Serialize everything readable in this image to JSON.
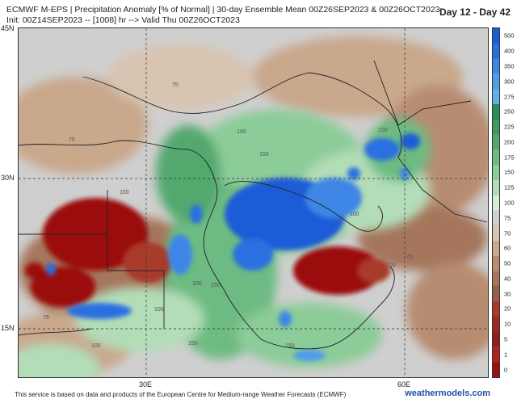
{
  "header": {
    "title_line1": "ECMWF M-EPS | Precipitation Anomaly [% of Normal] | 30-day Ensemble Mean 00Z26SEP2023 & 00Z26OCT2023",
    "title_line2": "Init: 00Z14SEP2023 -- [1008] hr --> Valid Thu 00Z26OCT2023",
    "day_range": "Day 12 - Day 42"
  },
  "map": {
    "lat_labels": [
      "45N",
      "30N",
      "15N"
    ],
    "lon_labels": [
      "30E",
      "60E"
    ],
    "contour_labels": [
      "75",
      "100",
      "150",
      "75",
      "150",
      "100",
      "150",
      "100",
      "75",
      "100",
      "150",
      "100",
      "150",
      "100",
      "75",
      "150"
    ]
  },
  "colorbar": {
    "levels": [
      "500",
      "400",
      "350",
      "300",
      "275",
      "250",
      "225",
      "200",
      "175",
      "150",
      "125",
      "100",
      "75",
      "70",
      "60",
      "50",
      "40",
      "30",
      "20",
      "10",
      "5",
      "1",
      "0"
    ],
    "colors": [
      "#1f5bd6",
      "#2a6fe0",
      "#3d86e6",
      "#4f9bea",
      "#5fb0e8",
      "#2f8a5a",
      "#3f9a62",
      "#52a86e",
      "#6dbb82",
      "#8ccc98",
      "#b2ddb7",
      "#d6eed7",
      "#cfcfcf",
      "#d8c4b0",
      "#c9a88c",
      "#b78d72",
      "#a5765c",
      "#936048",
      "#a83a2a",
      "#9c2a22",
      "#8f1e1c",
      "#b0231f",
      "#9b1111"
    ]
  },
  "footer": {
    "disclaimer": "This service is based on data and products of the European Centre for Medium-range Weather Forecasts (ECMWF)",
    "brand": "weathermodels.com"
  }
}
